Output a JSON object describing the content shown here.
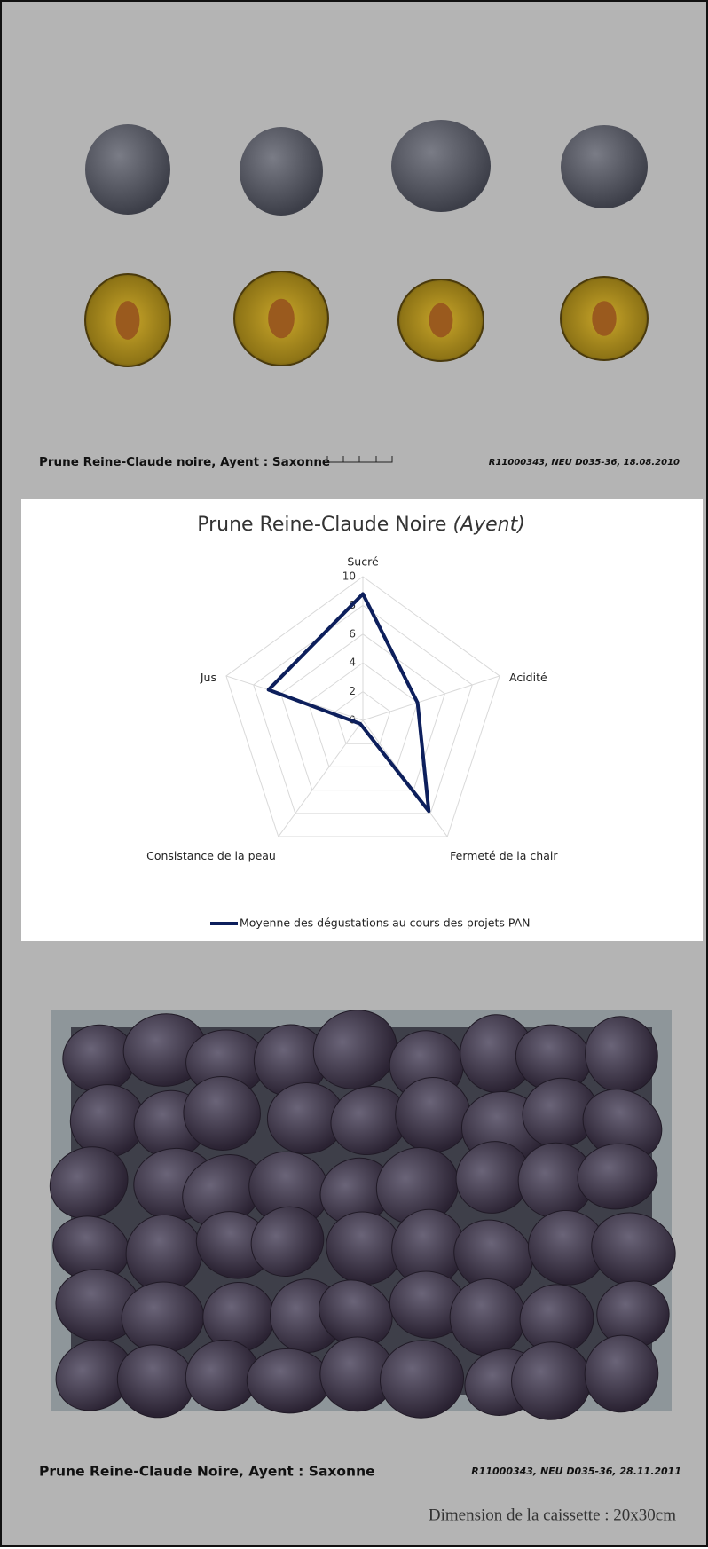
{
  "photo_caption": {
    "title": "Prune Reine-Claude noire, Ayent : Saxonne",
    "reference": "R11000343, NEU D035-36, 18.08.2010"
  },
  "chart_data": {
    "type": "radar",
    "title": "Prune Reine-Claude Noire",
    "subtitle": "(Ayent)",
    "categories": [
      "Sucré",
      "Acidité",
      "Fermeté de la chair",
      "Consistance de la peau",
      "Jus"
    ],
    "series": [
      {
        "name": "Moyenne des dégustations au cours des projets PAN",
        "color": "#0d1f5c",
        "values": [
          8.8,
          4,
          7.8,
          0.3,
          6.9
        ]
      }
    ],
    "rlim": [
      0,
      10
    ],
    "rticks": [
      0,
      2,
      4,
      6,
      8,
      10
    ],
    "grid": true,
    "legend": "bottom"
  },
  "crate_caption": {
    "title": "Prune Reine-Claude Noire, Ayent : Saxonne",
    "reference": "R11000343, NEU D035-36, 28.11.2011"
  },
  "dimension": "Dimension de la caissette : 20x30cm"
}
